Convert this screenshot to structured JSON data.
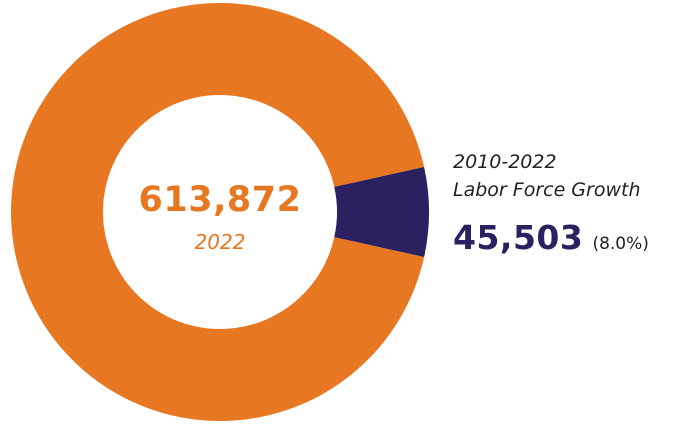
{
  "colors": {
    "orange": "#E87722",
    "navy": "#2B2160",
    "center": "#FFFFFF"
  },
  "chart_data": {
    "type": "pie",
    "title": "",
    "center_label": {
      "value": "613,872",
      "caption": "2022"
    },
    "slices": [
      {
        "label": "2022",
        "value": 613872,
        "color": "#E87722"
      },
      {
        "label": "2010-2022 Labor Force Growth",
        "value": 45503,
        "percent_text": "(8.0%)",
        "color": "#2B2160"
      }
    ],
    "annotation": {
      "line1": "2010-2022",
      "line2": "Labor Force Growth",
      "value": "45,503",
      "percent": "(8.0%)"
    }
  }
}
